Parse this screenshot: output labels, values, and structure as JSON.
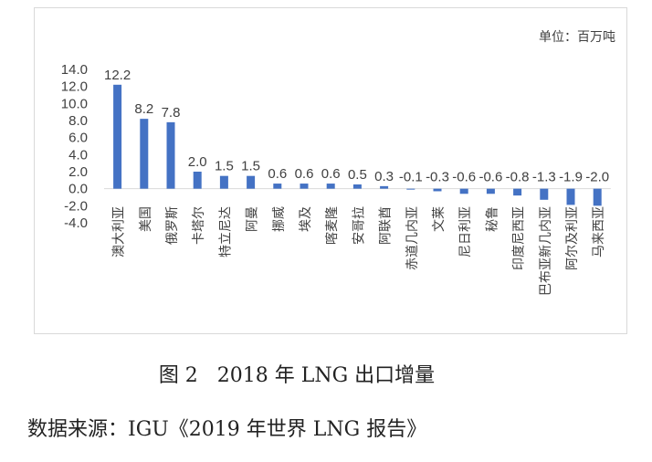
{
  "chart_data": {
    "type": "bar",
    "unit_label": "单位：百万吨",
    "categories": [
      "澳大利亚",
      "美国",
      "俄罗斯",
      "卡塔尔",
      "特立尼达",
      "阿曼",
      "挪威",
      "埃及",
      "喀麦隆",
      "安哥拉",
      "阿联酋",
      "赤道几内亚",
      "文莱",
      "尼日利亚",
      "秘鲁",
      "印度尼西亚",
      "巴布亚新几内亚",
      "阿尔及利亚",
      "马来西亚"
    ],
    "values": [
      12.2,
      8.2,
      7.8,
      2.0,
      1.5,
      1.5,
      0.6,
      0.6,
      0.6,
      0.5,
      0.3,
      -0.1,
      -0.3,
      -0.6,
      -0.6,
      -0.8,
      -1.3,
      -1.9,
      -2.0
    ],
    "value_labels": [
      "12.2",
      "8.2",
      "7.8",
      "2.0",
      "1.5",
      "1.5",
      "0.6",
      "0.6",
      "0.6",
      "0.5",
      "0.3",
      "-0.1",
      "-0.3",
      "-0.6",
      "-0.6",
      "-0.8",
      "-1.3",
      "-1.9",
      "-2.0"
    ],
    "y_ticks": [
      "14.0",
      "12.0",
      "10.0",
      "8.0",
      "6.0",
      "4.0",
      "2.0",
      "0.0",
      "-2.0",
      "-4.0"
    ],
    "ylim": [
      -4,
      14
    ],
    "bar_color": "#4472c4",
    "grid": false,
    "legend": "none"
  },
  "caption": "图 2   2018 年 LNG 出口增量",
  "source": "数据来源：IGU《2019 年世界 LNG 报告》"
}
